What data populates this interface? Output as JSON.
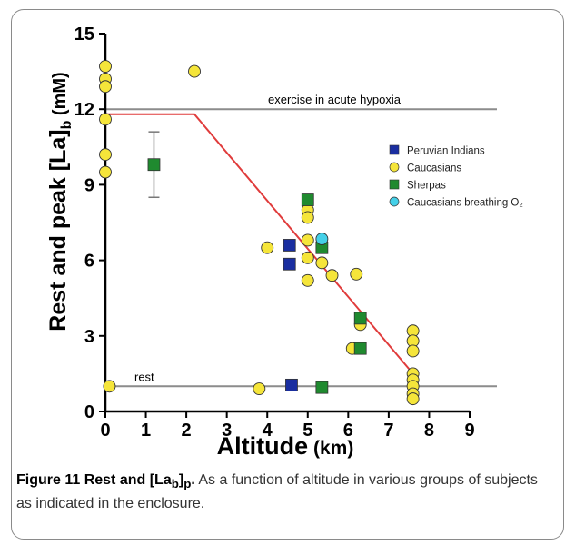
{
  "chart_data": {
    "type": "scatter",
    "ylabel_parts": {
      "main": "Rest and peak [La]",
      "sub": "b",
      "unit": " (mM)"
    },
    "xlabel_parts": {
      "main": "Altitude",
      "unit": " (km)"
    },
    "xlim": [
      0,
      9
    ],
    "ylim": [
      0,
      15
    ],
    "xticks": [
      "0",
      "1",
      "2",
      "3",
      "4",
      "5",
      "6",
      "7",
      "8",
      "9"
    ],
    "yticks": [
      "0",
      "3",
      "6",
      "9",
      "12",
      "15"
    ],
    "grid": false,
    "legend_position": "right",
    "reference_lines": [
      {
        "label": "exercise in acute hypoxia",
        "y": 12
      },
      {
        "label": "rest",
        "y": 1
      }
    ],
    "trend_line": {
      "color": "#e03c3c",
      "points": [
        [
          0,
          11.8
        ],
        [
          2.2,
          11.8
        ],
        [
          7.6,
          1.5
        ]
      ]
    },
    "series": [
      {
        "name": "Peruvian Indians",
        "marker": "square",
        "color": "#1a2ea0",
        "points": [
          [
            4.55,
            6.6
          ],
          [
            4.55,
            5.85
          ],
          [
            4.6,
            1.05
          ]
        ]
      },
      {
        "name": "Caucasians",
        "marker": "circle",
        "color": "#f5e53a",
        "points": [
          [
            0,
            13.7
          ],
          [
            0,
            13.2
          ],
          [
            0,
            12.9
          ],
          [
            0,
            11.6
          ],
          [
            0,
            10.2
          ],
          [
            0,
            9.5
          ],
          [
            0.1,
            1.0
          ],
          [
            2.2,
            13.5
          ],
          [
            3.8,
            0.9
          ],
          [
            4.0,
            6.5
          ],
          [
            5.0,
            8.0
          ],
          [
            5.0,
            7.7
          ],
          [
            5.0,
            6.8
          ],
          [
            5.0,
            6.1
          ],
          [
            5.0,
            5.2
          ],
          [
            5.35,
            5.9
          ],
          [
            5.6,
            5.4
          ],
          [
            6.1,
            2.5
          ],
          [
            6.2,
            5.45
          ],
          [
            6.3,
            3.45
          ],
          [
            7.6,
            3.2
          ],
          [
            7.6,
            2.8
          ],
          [
            7.6,
            2.4
          ],
          [
            7.6,
            1.5
          ],
          [
            7.6,
            1.25
          ],
          [
            7.6,
            1.0
          ],
          [
            7.6,
            0.7
          ],
          [
            7.6,
            0.5
          ]
        ]
      },
      {
        "name": "Sherpas",
        "marker": "square",
        "color": "#1f8a2f",
        "points": [
          [
            1.2,
            9.8
          ],
          [
            5.0,
            8.4
          ],
          [
            5.35,
            6.5
          ],
          [
            5.35,
            0.95
          ],
          [
            6.3,
            3.7
          ],
          [
            6.3,
            2.5
          ]
        ],
        "error_bars": [
          {
            "x": 1.2,
            "y": 9.8,
            "low": 8.5,
            "high": 11.1
          }
        ]
      },
      {
        "name": "Caucasians breathing O₂",
        "marker": "circle",
        "color": "#44d0e8",
        "points": [
          [
            5.35,
            6.85
          ]
        ]
      }
    ]
  },
  "caption": {
    "label_prefix": "Figure 11 Rest and [La",
    "label_sub1": "b",
    "label_mid": "]",
    "label_sub2": "p",
    "label_end": ".",
    "text": " As a function of altitude in various groups of subjects as indicated in the enclosure."
  },
  "colors": {
    "axis": "#000000",
    "reference_line": "#8c8c8c",
    "marker_outline": "#333333"
  }
}
